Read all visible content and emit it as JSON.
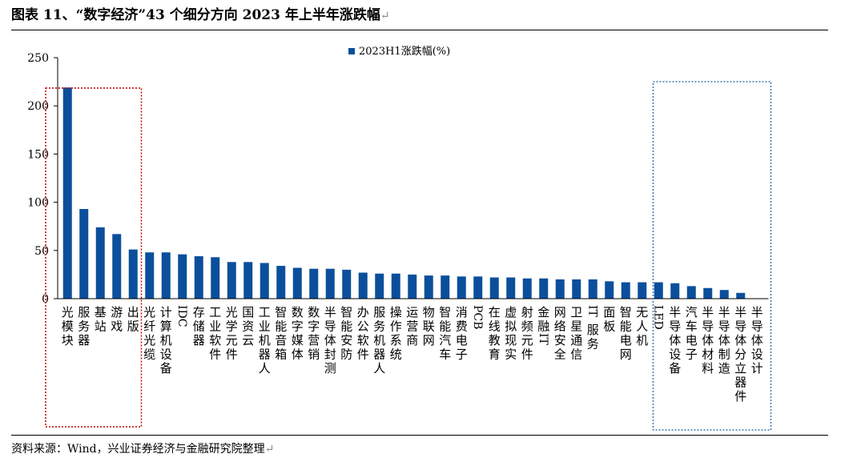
{
  "title": "图表 11、“数字经济”43 个细分方向 2023 年上半年涨跌幅",
  "source": "资料来源：Wind，兴业证券经济与金融研究院整理",
  "para_mark": "↵",
  "colors": {
    "bar": "#0b4f9c",
    "box_red": "#c00000",
    "box_blue": "#3a75b8"
  },
  "chart_data": {
    "type": "bar",
    "legend": "2023H1涨跌幅(%)",
    "legend_position": "top-center",
    "ylim": [
      0,
      250
    ],
    "yticks": [
      0,
      50,
      100,
      150,
      200,
      250
    ],
    "grid": false,
    "categories": [
      "光模块",
      "服务器",
      "基站",
      "游戏",
      "出版",
      "光纤光缆",
      "计算机设备",
      "IDC",
      "存储器",
      "工业软件",
      "光学元件",
      "国资云",
      "工业机器人",
      "智能音箱",
      "数字媒体",
      "数字营销",
      "半导体封测",
      "智能安防",
      "办公软件",
      "服务机器人",
      "操作系统",
      "运营商",
      "物联网",
      "智能汽车",
      "消费电子",
      "PCB",
      "在线教育",
      "虚拟现实",
      "射频元件",
      "金融IT",
      "网络安全",
      "卫星通信",
      "IT服务",
      "面板",
      "智能电网",
      "无人机",
      "LED",
      "半导体设备",
      "汽车电子",
      "半导体材料",
      "半导体制造",
      "半导体分立器件",
      "半导体设计"
    ],
    "values": [
      219,
      93,
      74,
      67,
      51,
      48,
      48,
      46,
      44,
      43,
      38,
      38,
      37,
      34,
      32,
      31,
      31,
      30,
      27,
      26,
      26,
      25,
      24,
      24,
      23,
      23,
      22,
      22,
      21,
      21,
      20,
      20,
      20,
      18,
      17,
      17,
      17,
      16,
      13,
      11,
      9,
      6,
      0
    ],
    "highlight_groups": [
      {
        "style": "red-dotted",
        "from": 0,
        "to": 4
      },
      {
        "style": "blue-dotted",
        "from": 37,
        "to": 42
      }
    ]
  }
}
